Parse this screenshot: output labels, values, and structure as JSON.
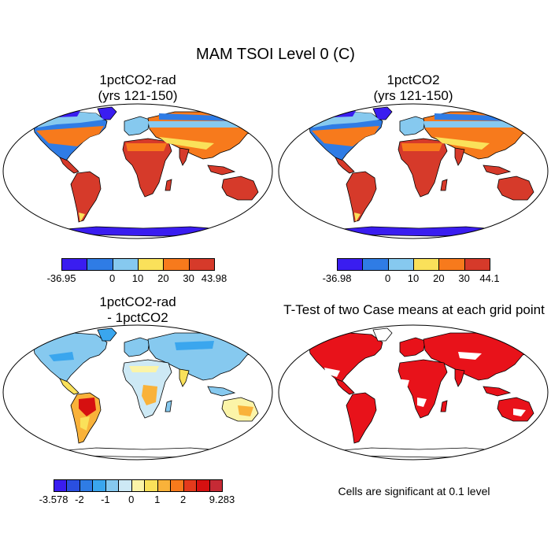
{
  "figure": {
    "title": "MAM TSOI Level 0 (C)"
  },
  "panels": [
    {
      "id": "p1",
      "title_line1": "1pctCO2-rad",
      "title_line2": "(yrs 121-150)",
      "colorbar": {
        "colors": [
          "#3a1df0",
          "#2f7ce5",
          "#86c9ef",
          "#fae15a",
          "#f77a1c",
          "#d63a2a"
        ],
        "labels": [
          "-36.95",
          "0",
          "10",
          "20",
          "30",
          "43.98"
        ]
      }
    },
    {
      "id": "p2",
      "title_line1": "1pctCO2",
      "title_line2": "(yrs 121-150)",
      "colorbar": {
        "colors": [
          "#3a1df0",
          "#2f7ce5",
          "#86c9ef",
          "#fae15a",
          "#f77a1c",
          "#d63a2a"
        ],
        "labels": [
          "-36.98",
          "0",
          "10",
          "20",
          "30",
          "44.1"
        ]
      }
    },
    {
      "id": "p3",
      "title_line1": "1pctCO2-rad",
      "title_line2": "- 1pctCO2",
      "colorbar": {
        "colors": [
          "#3a1df0",
          "#2a4fe0",
          "#2f7ce5",
          "#3aa6ee",
          "#86c9ef",
          "#cde9f5",
          "#fbf4a8",
          "#fae15a",
          "#f9b23a",
          "#f77a1c",
          "#e43a1c",
          "#d61010",
          "#c62a35"
        ],
        "labels": [
          "-3.578",
          "-2",
          "-1",
          "0",
          "1",
          "2",
          "9.283"
        ]
      }
    },
    {
      "id": "p4",
      "title_line1": "T-Test of two Case means at each grid point",
      "note": "Cells are significant at 0.1 level"
    }
  ]
}
